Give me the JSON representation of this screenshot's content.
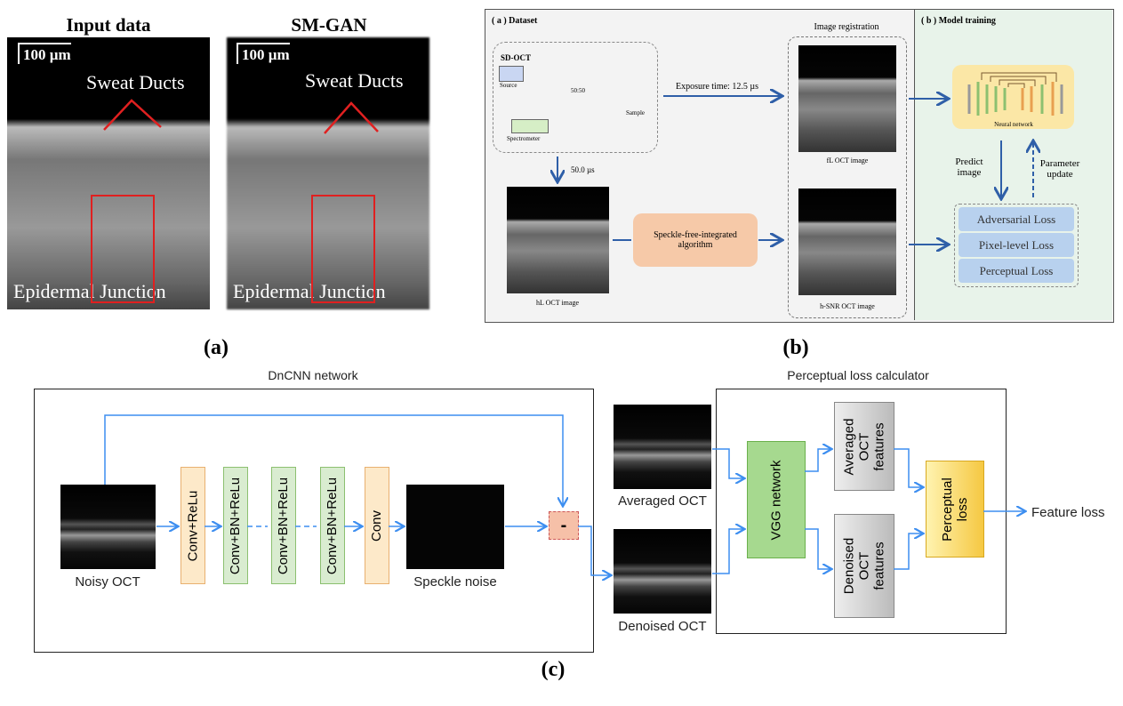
{
  "panel_a": {
    "caption": "(a)",
    "left_title": "Input data",
    "right_title": "SM-GAN",
    "scale_bar": "100 µm",
    "annotation_top": "Sweat Ducts",
    "annotation_bottom": "Epidermal Junction",
    "highlight_color": "#e02020"
  },
  "panel_b": {
    "caption": "(b)",
    "dataset_title": "( a ) Dataset",
    "training_title": "( b ) Model training",
    "sdoct": "SD-OCT",
    "source": "Source",
    "splitter": "50:50",
    "sample": "Sample",
    "spectrometer": "Spectrometer",
    "exposure": "Exposure time: 12.5 µs",
    "exposure_long": "50.0 µs",
    "registration": "Image registration",
    "fl_image": "fL OCT image",
    "hl_image": "hL OCT image",
    "hsnr_image": "h-SNR OCT image",
    "algorithm": "Speckle-free-integrated algorithm",
    "neural_network": "Neural network",
    "predict": "Predict image",
    "param_update": "Parameter update",
    "losses": [
      "Adversarial Loss",
      "Pixel-level Loss",
      "Perceptual Loss"
    ],
    "colors": {
      "arrow": "#2f5fa8",
      "algorithm": "#f6c9a8",
      "losses": "#b8d1ee",
      "training_bg": "#e8f3ea",
      "nn_bg": "#fbe7a6"
    }
  },
  "panel_c": {
    "caption": "(c)",
    "dncnn_title": "DnCNN network",
    "perceptual_title": "Perceptual loss calculator",
    "noisy": "Noisy OCT",
    "layers": [
      "Conv+ReLu",
      "Conv+BN+ReLu",
      "Conv+BN+ReLu",
      "Conv+BN+ReLu",
      "Conv"
    ],
    "speckle": "Speckle noise",
    "minus": "-",
    "averaged": "Averaged OCT",
    "denoised": "Denoised OCT",
    "vgg": "VGG network",
    "avg_features": "Averaged OCT features",
    "den_features": "Denoised OCT features",
    "perceptual_loss": "Perceptual loss",
    "feature_loss": "Feature loss",
    "colors": {
      "arrow": "#3d8ef0",
      "conv": "#fde9c9",
      "bn": "#d9ecd0",
      "vgg": "#a6d98f",
      "features": "#d3d3d3",
      "perceptual": "#fde07a"
    }
  }
}
